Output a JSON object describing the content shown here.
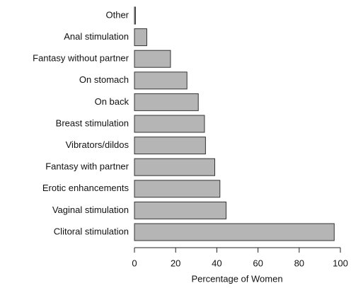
{
  "chart_data": {
    "type": "hbar",
    "categories": [
      "Other",
      "Anal stimulation",
      "Fantasy without partner",
      "On stomach",
      "On back",
      "Breast stimulation",
      "Vibrators/dildos",
      "Fantasy with partner",
      "Erotic enhancements",
      "Vaginal stimulation",
      "Clitoral stimulation"
    ],
    "values": [
      0.5,
      6,
      17.5,
      25.5,
      31,
      34,
      34.5,
      39,
      41.5,
      44.5,
      97
    ],
    "color": "#b5b5b5",
    "xlabel": "Percentage of Women",
    "xlim": [
      0,
      100
    ],
    "xticks": [
      0,
      20,
      40,
      60,
      80,
      100
    ]
  }
}
